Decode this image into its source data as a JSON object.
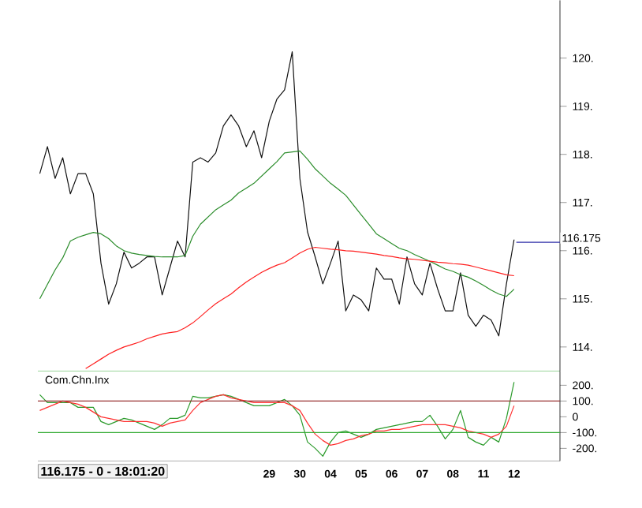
{
  "chart_data": [
    {
      "type": "line",
      "ylim": [
        113.5,
        121.2
      ],
      "tick_labels": "y",
      "categories": [
        null,
        null,
        null,
        null,
        null,
        null,
        null,
        null,
        null,
        null,
        null,
        null,
        null,
        null,
        null,
        null,
        null,
        null,
        null,
        null,
        null,
        null,
        null,
        null,
        null,
        null,
        null,
        null,
        null,
        null,
        "29",
        null,
        null,
        null,
        "30",
        null,
        null,
        null,
        "04",
        null,
        null,
        null,
        "05",
        null,
        null,
        null,
        "06",
        null,
        null,
        null,
        "07",
        null,
        null,
        null,
        "08",
        null,
        null,
        null,
        "11",
        null,
        null,
        null,
        "12"
      ],
      "yticks": [
        {
          "value": 114,
          "label": "114."
        },
        {
          "value": 115,
          "label": "115."
        },
        {
          "value": 116,
          "label": "116."
        },
        {
          "value": 117,
          "label": "117."
        },
        {
          "value": 118,
          "label": "118."
        },
        {
          "value": 119,
          "label": "119."
        },
        {
          "value": 120,
          "label": "120."
        }
      ],
      "ref_lines": [
        {
          "axis": "y",
          "value": 116.175,
          "label": "116.175",
          "color": "#3333aa"
        }
      ],
      "series": [
        {
          "color": "#111111",
          "values": [
            117.6,
            118.16,
            117.5,
            117.93,
            117.18,
            117.6,
            117.6,
            117.18,
            115.74,
            114.89,
            115.31,
            115.97,
            115.64,
            115.74,
            115.87,
            115.87,
            115.08,
            115.64,
            116.2,
            115.87,
            117.84,
            117.93,
            117.84,
            118.03,
            118.59,
            118.82,
            118.59,
            118.16,
            118.49,
            117.93,
            118.69,
            119.15,
            119.34,
            120.13,
            117.5,
            116.39,
            115.87,
            115.31,
            115.74,
            116.2,
            114.75,
            115.08,
            114.98,
            114.75,
            115.64,
            115.41,
            115.41,
            114.89,
            115.87,
            115.31,
            115.08,
            115.74,
            115.21,
            114.75,
            114.75,
            115.54,
            114.66,
            114.43,
            114.66,
            114.56,
            114.23,
            115.31,
            116.23
          ]
        },
        {
          "color": "#2a8c2a",
          "values": [
            115.0,
            115.3,
            115.6,
            115.85,
            116.2,
            116.28,
            116.33,
            116.38,
            116.35,
            116.25,
            116.1,
            116.0,
            115.95,
            115.92,
            115.9,
            115.88,
            115.87,
            115.87,
            115.87,
            115.9,
            116.3,
            116.55,
            116.7,
            116.85,
            116.95,
            117.05,
            117.2,
            117.3,
            117.4,
            117.55,
            117.7,
            117.85,
            118.03,
            118.05,
            118.07,
            117.9,
            117.7,
            117.55,
            117.4,
            117.28,
            117.15,
            116.95,
            116.75,
            116.55,
            116.35,
            116.25,
            116.15,
            116.05,
            116.0,
            115.92,
            115.85,
            115.78,
            115.7,
            115.62,
            115.57,
            115.5,
            115.45,
            115.37,
            115.28,
            115.18,
            115.1,
            115.05,
            115.2
          ]
        },
        {
          "color": "#ff2020",
          "values": [
            null,
            null,
            null,
            null,
            null,
            null,
            113.55,
            113.65,
            113.75,
            113.85,
            113.93,
            114.0,
            114.05,
            114.1,
            114.17,
            114.22,
            114.27,
            114.3,
            114.32,
            114.4,
            114.5,
            114.63,
            114.77,
            114.9,
            115.0,
            115.1,
            115.23,
            115.35,
            115.45,
            115.55,
            115.63,
            115.7,
            115.75,
            115.85,
            115.95,
            116.03,
            116.07,
            116.05,
            116.03,
            116.02,
            116.0,
            115.99,
            115.97,
            115.95,
            115.93,
            115.9,
            115.88,
            115.85,
            115.83,
            115.82,
            115.8,
            115.78,
            115.76,
            115.75,
            115.73,
            115.72,
            115.7,
            115.66,
            115.62,
            115.58,
            115.54,
            115.5,
            115.48
          ]
        }
      ]
    },
    {
      "type": "line",
      "title": "Com.Chn.Inx",
      "ylim": [
        -280,
        290
      ],
      "categories": [
        null,
        null,
        null,
        null,
        null,
        null,
        null,
        null,
        null,
        null,
        null,
        null,
        null,
        null,
        null,
        null,
        null,
        null,
        null,
        null,
        null,
        null,
        null,
        null,
        null,
        null,
        null,
        null,
        null,
        null,
        "29",
        null,
        null,
        null,
        "30",
        null,
        null,
        null,
        "04",
        null,
        null,
        null,
        "05",
        null,
        null,
        null,
        "06",
        null,
        null,
        null,
        "07",
        null,
        null,
        null,
        "08",
        null,
        null,
        null,
        "11",
        null,
        null,
        null,
        "12"
      ],
      "yticks": [
        {
          "value": -200,
          "label": "-200."
        },
        {
          "value": -100,
          "label": "-100."
        },
        0,
        {
          "value": 100,
          "label": "100."
        },
        {
          "value": 200,
          "label": "200."
        }
      ],
      "annotations": [
        "116.175 - 0 - 18:01:20"
      ],
      "ref_lines": [
        {
          "axis": "y",
          "value": 100,
          "color": "#993333"
        },
        {
          "axis": "y",
          "value": -100,
          "color": "#33aa33"
        }
      ],
      "series": [
        {
          "color": "#2a9a2a",
          "values": [
            140,
            90,
            90,
            90,
            90,
            60,
            60,
            60,
            -30,
            -50,
            -30,
            -10,
            -20,
            -40,
            -60,
            -80,
            -50,
            -10,
            -10,
            10,
            130,
            120,
            120,
            130,
            140,
            130,
            110,
            90,
            70,
            70,
            70,
            90,
            110,
            70,
            10,
            -160,
            -200,
            -250,
            -160,
            -100,
            -90,
            -110,
            -130,
            -110,
            -80,
            -70,
            -60,
            -50,
            -40,
            -30,
            -30,
            10,
            -60,
            -140,
            -80,
            40,
            -130,
            -160,
            -180,
            -130,
            -160,
            -10,
            220
          ]
        },
        {
          "color": "#ff3030",
          "values": [
            40,
            60,
            80,
            100,
            90,
            80,
            60,
            30,
            0,
            -10,
            -20,
            -30,
            -30,
            -30,
            -30,
            -40,
            -60,
            -40,
            -30,
            -20,
            40,
            90,
            110,
            130,
            140,
            120,
            110,
            100,
            90,
            90,
            90,
            90,
            90,
            70,
            40,
            -40,
            -110,
            -150,
            -180,
            -170,
            -150,
            -140,
            -120,
            -110,
            -90,
            -90,
            -80,
            -80,
            -70,
            -60,
            -50,
            -50,
            -50,
            -50,
            -60,
            -70,
            -90,
            -100,
            -110,
            -130,
            -110,
            -60,
            70
          ]
        }
      ]
    }
  ]
}
